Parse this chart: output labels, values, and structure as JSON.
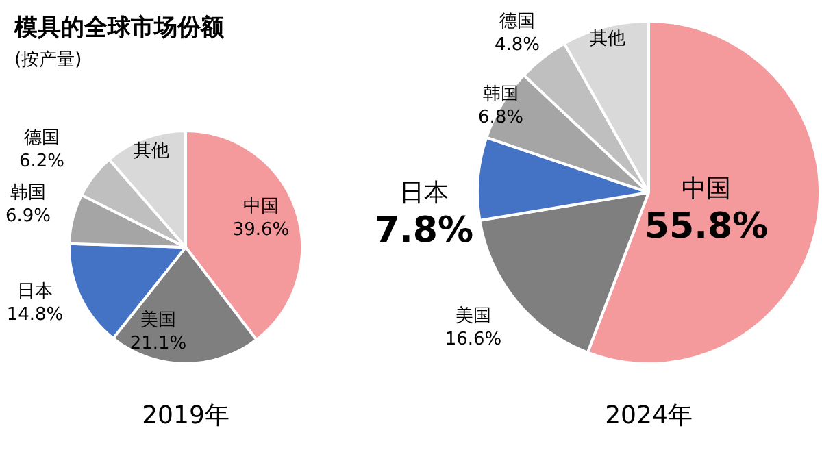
{
  "chart_data": [
    {
      "type": "pie",
      "title": "模具的全球市场份额",
      "subtitle": "(按产量)",
      "xlabel": "2019年",
      "categories": [
        "中国",
        "美国",
        "日本",
        "韩国",
        "德国",
        "其他"
      ],
      "values": [
        39.6,
        21.1,
        14.8,
        6.9,
        6.2,
        11.4
      ],
      "value_labels": [
        "39.6%",
        "21.1%",
        "14.8%",
        "6.9%",
        "6.2%",
        null
      ],
      "colors": [
        "#f4999c",
        "#7f7f7f",
        "#4472c4",
        "#a5a5a5",
        "#bfbfbf",
        "#d9d9d9"
      ]
    },
    {
      "type": "pie",
      "xlabel": "2024年",
      "categories": [
        "中国",
        "美国",
        "日本",
        "韩国",
        "德国",
        "其他"
      ],
      "values": [
        55.8,
        16.6,
        7.8,
        6.8,
        4.8,
        8.2
      ],
      "value_labels": [
        "55.8%",
        "16.6%",
        "7.8%",
        "6.8%",
        "4.8%",
        null
      ],
      "colors": [
        "#f4999c",
        "#7f7f7f",
        "#4472c4",
        "#a5a5a5",
        "#bfbfbf",
        "#d9d9d9"
      ]
    }
  ]
}
